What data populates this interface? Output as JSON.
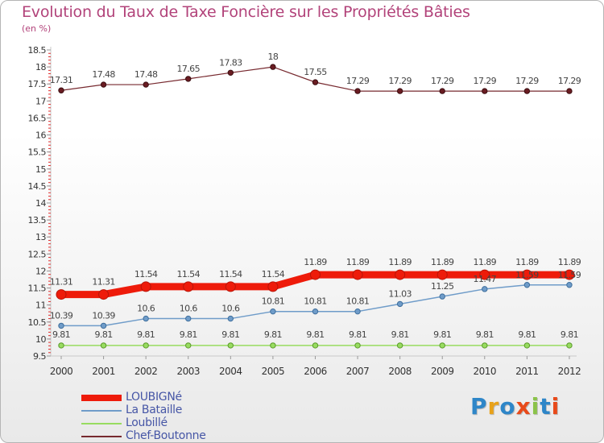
{
  "header": {
    "title": "Evolution du Taux de Taxe Foncière sur les Propriétés Bâties",
    "unit": "(en %)"
  },
  "chart_data": {
    "type": "line",
    "title": "Evolution du Taux de Taxe Foncière sur les Propriétés Bâties",
    "ylabel": "(en %)",
    "xlabel": "",
    "categories": [
      "2000",
      "2001",
      "2002",
      "2003",
      "2004",
      "2005",
      "2006",
      "2007",
      "2008",
      "2009",
      "2010",
      "2011",
      "2012"
    ],
    "ylim": [
      9.5,
      18.5
    ],
    "yticks": [
      "9.5",
      "10",
      "10.5",
      "11",
      "11.5",
      "12",
      "12.5",
      "13",
      "13.5",
      "14",
      "14.5",
      "15",
      "15.5",
      "16",
      "16.5",
      "17",
      "17.5",
      "18",
      "18.5"
    ],
    "grid": false,
    "legend_position": "bottom-left",
    "series": [
      {
        "name": "LOUBIGNé",
        "color": "#ee1b0a",
        "values": [
          11.31,
          11.31,
          11.54,
          11.54,
          11.54,
          11.54,
          11.89,
          11.89,
          11.89,
          11.89,
          11.89,
          11.89,
          11.89
        ],
        "labels": [
          "11.31",
          "11.31",
          "11.54",
          "11.54",
          "11.54",
          "11.54",
          "11.89",
          "11.89",
          "11.89",
          "11.89",
          "11.89",
          "11.89",
          "11.89"
        ]
      },
      {
        "name": "La Bataille",
        "color": "#6f9cc9",
        "values": [
          10.39,
          10.39,
          10.6,
          10.6,
          10.6,
          10.81,
          10.81,
          10.81,
          11.03,
          11.25,
          11.47,
          11.59,
          11.59
        ],
        "labels": [
          "10.39",
          "10.39",
          "10.6",
          "10.6",
          "10.6",
          "10.81",
          "10.81",
          "10.81",
          "11.03",
          "11.25",
          "11.47",
          "11.59",
          "11.59"
        ]
      },
      {
        "name": "Loubillé",
        "color": "#98dc60",
        "values": [
          9.81,
          9.81,
          9.81,
          9.81,
          9.81,
          9.81,
          9.81,
          9.81,
          9.81,
          9.81,
          9.81,
          9.81,
          9.81
        ],
        "labels": [
          "9.81",
          "9.81",
          "9.81",
          "9.81",
          "9.81",
          "9.81",
          "9.81",
          "9.81",
          "9.81",
          "9.81",
          "9.81",
          "9.81",
          "9.81"
        ]
      },
      {
        "name": "Chef-Boutonne",
        "color": "#77292f",
        "values": [
          17.31,
          17.48,
          17.48,
          17.65,
          17.83,
          18,
          17.55,
          17.29,
          17.29,
          17.29,
          17.29,
          17.29,
          17.29
        ],
        "labels": [
          "17.31",
          "17.48",
          "17.48",
          "17.65",
          "17.83",
          "18",
          "17.55",
          "17.29",
          "17.29",
          "17.29",
          "17.29",
          "17.29",
          "17.29"
        ]
      }
    ]
  },
  "logo": {
    "letters": [
      "P",
      "r",
      "o",
      "x",
      "i",
      "t",
      "i"
    ],
    "colors": [
      "#2e86c8",
      "#e8a21a",
      "#2e86c8",
      "#e84a1a",
      "#8bc34a",
      "#2e86c8",
      "#e84a1a"
    ]
  }
}
